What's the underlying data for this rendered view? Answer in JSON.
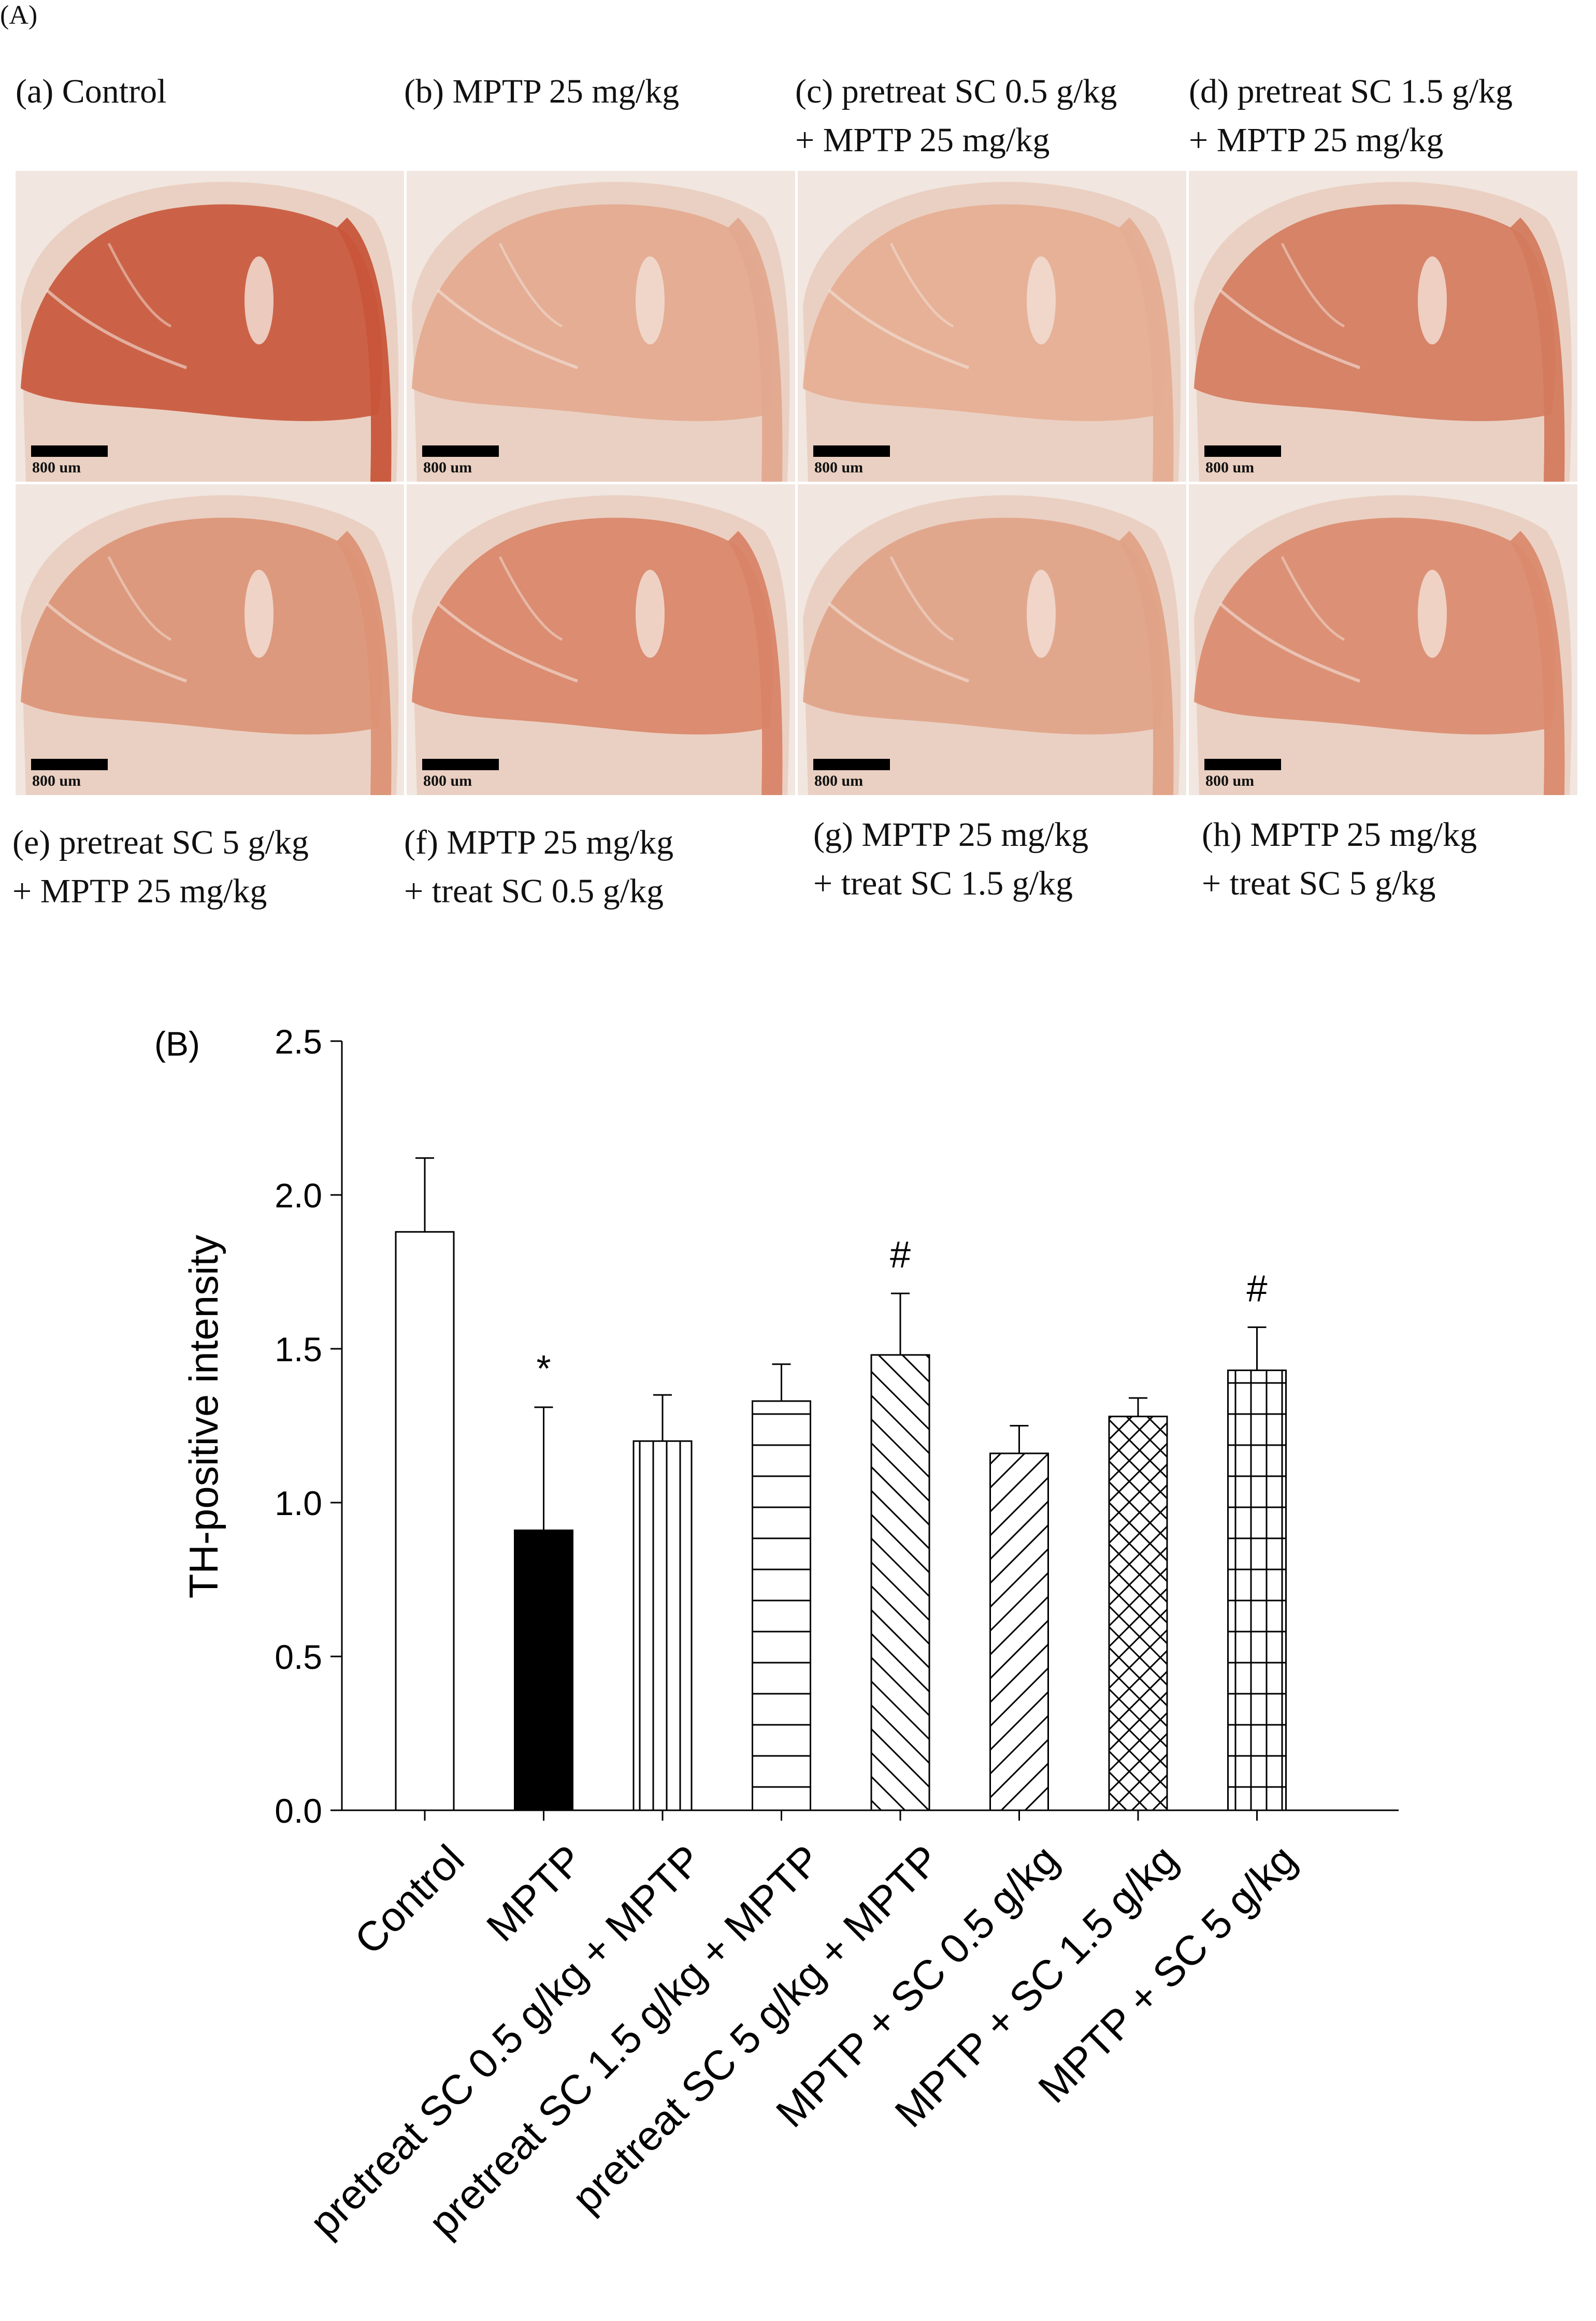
{
  "panel_a_label": "(A)",
  "scale_bar_text": "800 um",
  "panels": [
    {
      "line1": "(a) Control",
      "line2": ""
    },
    {
      "line1": "(b) MPTP 25 mg/kg",
      "line2": ""
    },
    {
      "line1": "(c) pretreat SC 0.5 g/kg",
      "line2": "+ MPTP 25 mg/kg"
    },
    {
      "line1": "(d) pretreat SC 1.5 g/kg",
      "line2": "+ MPTP 25 mg/kg"
    },
    {
      "line1": "(e) pretreat SC 5 g/kg",
      "line2": "+ MPTP 25 mg/kg"
    },
    {
      "line1": "(f) MPTP 25 mg/kg",
      "line2": "+ treat SC 0.5 g/kg"
    },
    {
      "line1": "(g) MPTP 25 mg/kg",
      "line2": "+ treat SC 1.5 g/kg"
    },
    {
      "line1": "(h) MPTP 25 mg/kg",
      "line2": "+ treat SC 5 g/kg"
    }
  ],
  "stain_colors": [
    "#c8553a",
    "#e3a88f",
    "#e5ad92",
    "#d47a5e",
    "#dc9275",
    "#d98468",
    "#e0a287",
    "#da8a6e"
  ],
  "chart_data": {
    "type": "bar",
    "panel_label": "(B)",
    "title": "",
    "xlabel": "",
    "ylabel": "TH-positive intensity",
    "ylim": [
      0,
      2.5
    ],
    "yticks": [
      "0.0",
      "0.5",
      "1.0",
      "1.5",
      "2.0",
      "2.5"
    ],
    "categories": [
      "Control",
      "MPTP",
      "pretreat SC 0.5 g/kg + MPTP",
      "pretreat SC 1.5 g/kg + MPTP",
      "pretreat SC 5 g/kg + MPTP",
      "MPTP + SC 0.5 g/kg",
      "MPTP + SC 1.5 g/kg",
      "MPTP + SC 5 g/kg"
    ],
    "values": [
      1.88,
      0.91,
      1.2,
      1.33,
      1.48,
      1.16,
      1.28,
      1.43
    ],
    "errors": [
      0.24,
      0.4,
      0.15,
      0.12,
      0.2,
      0.09,
      0.06,
      0.14
    ],
    "patterns": [
      "none",
      "solid",
      "vertical",
      "horizontal",
      "backslash",
      "slash",
      "cross",
      "grid"
    ],
    "annotations": [
      "",
      "*",
      "",
      "",
      "#",
      "",
      "",
      "#"
    ]
  }
}
